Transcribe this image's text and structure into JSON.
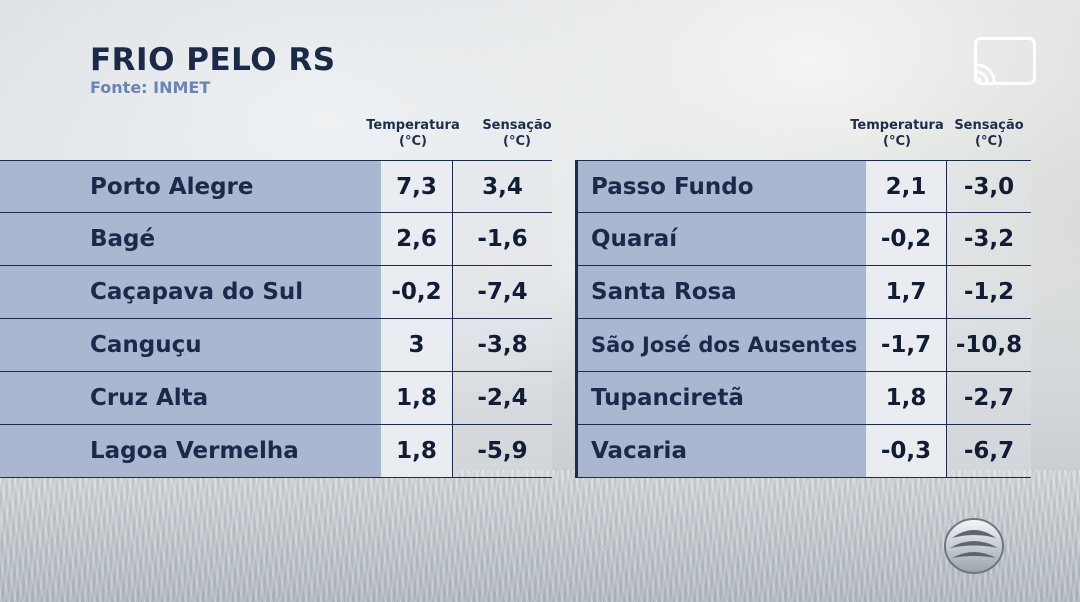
{
  "header": {
    "title": "FRIO PELO RS",
    "source": "Fonte: INMET"
  },
  "columns": {
    "temperature": [
      "Temperatura",
      "(°C)"
    ],
    "sensation": [
      "Sensação",
      "(°C)"
    ]
  },
  "left_table": [
    {
      "city": "Porto Alegre",
      "temp": "7,3",
      "feel": "3,4"
    },
    {
      "city": "Bagé",
      "temp": "2,6",
      "feel": "-1,6"
    },
    {
      "city": "Caçapava do Sul",
      "temp": "-0,2",
      "feel": "-7,4"
    },
    {
      "city": "Canguçu",
      "temp": "3",
      "feel": "-3,8"
    },
    {
      "city": "Cruz Alta",
      "temp": "1,8",
      "feel": "-2,4"
    },
    {
      "city": "Lagoa Vermelha",
      "temp": "1,8",
      "feel": "-5,9"
    }
  ],
  "right_table": [
    {
      "city": "Passo Fundo",
      "temp": "2,1",
      "feel": "-3,0"
    },
    {
      "city": "Quaraí",
      "temp": "-0,2",
      "feel": "-3,2"
    },
    {
      "city": "Santa Rosa",
      "temp": "1,7",
      "feel": "-1,2"
    },
    {
      "city": "São José dos Ausentes",
      "temp": "-1,7",
      "feel": "-10,8"
    },
    {
      "city": "Tupanciretã",
      "temp": "1,8",
      "feel": "-2,7"
    },
    {
      "city": "Vacaria",
      "temp": "-0,3",
      "feel": "-6,7"
    }
  ],
  "icons": {
    "cast": "cast-icon",
    "logo": "broadcaster-logo-icon"
  },
  "colors": {
    "city_cell": "#a9b8d0",
    "title": "#1c2a4a",
    "source": "#6b84b8"
  }
}
